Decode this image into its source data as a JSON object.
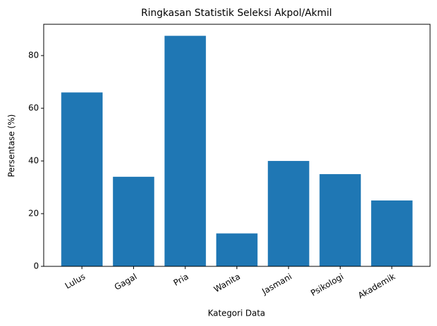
{
  "chart_data": {
    "type": "bar",
    "title": "Ringkasan Statistik Seleksi Akpol/Akmil",
    "x_label": "Kategori Data",
    "y_label": "Persentase (%)",
    "categories": [
      "Lulus",
      "Gagal",
      "Pria",
      "Wanita",
      "Jasmani",
      "Psikologi",
      "Akademik"
    ],
    "values": [
      66,
      34,
      87.5,
      12.5,
      40,
      35,
      25
    ],
    "color": "#1f77b4",
    "ylim": [
      0,
      91.875
    ],
    "yticks": [
      0,
      20,
      40,
      60,
      80
    ],
    "grid": false
  }
}
